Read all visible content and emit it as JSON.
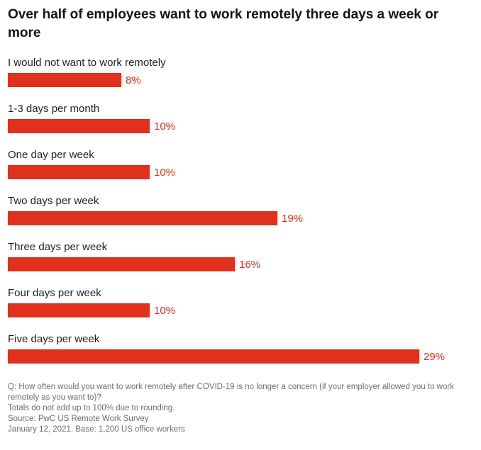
{
  "title": "Over half of employees want to work remotely three days a week or more",
  "accent_color": "#e0301e",
  "chart_data": {
    "type": "bar",
    "orientation": "horizontal",
    "title": "Over half of employees want to work remotely three days a week or more",
    "categories": [
      "I would not want to work remotely",
      "1-3 days per month",
      "One day per week",
      "Two days per week",
      "Three days per week",
      "Four days per week",
      "Five days per week"
    ],
    "values": [
      8,
      10,
      10,
      19,
      16,
      10,
      29
    ],
    "value_labels": [
      "8%",
      "10%",
      "10%",
      "19%",
      "16%",
      "10%",
      "29%"
    ],
    "xlabel": "",
    "ylabel": "",
    "xlim": [
      0,
      29
    ],
    "bar_color": "#e0301e",
    "value_label_color": "#e0301e",
    "grid": false,
    "legend": false
  },
  "footer": {
    "lines": [
      "Q: How often would you want to work remotely after COVID-19 is no longer a concern (if your employer allowed you to work remotely as you want to)?",
      "Totals do not add up to 100% due to rounding.",
      "Source: PwC US Remote Work Survey",
      "January 12, 2021. Base: 1,200 US office workers"
    ]
  }
}
